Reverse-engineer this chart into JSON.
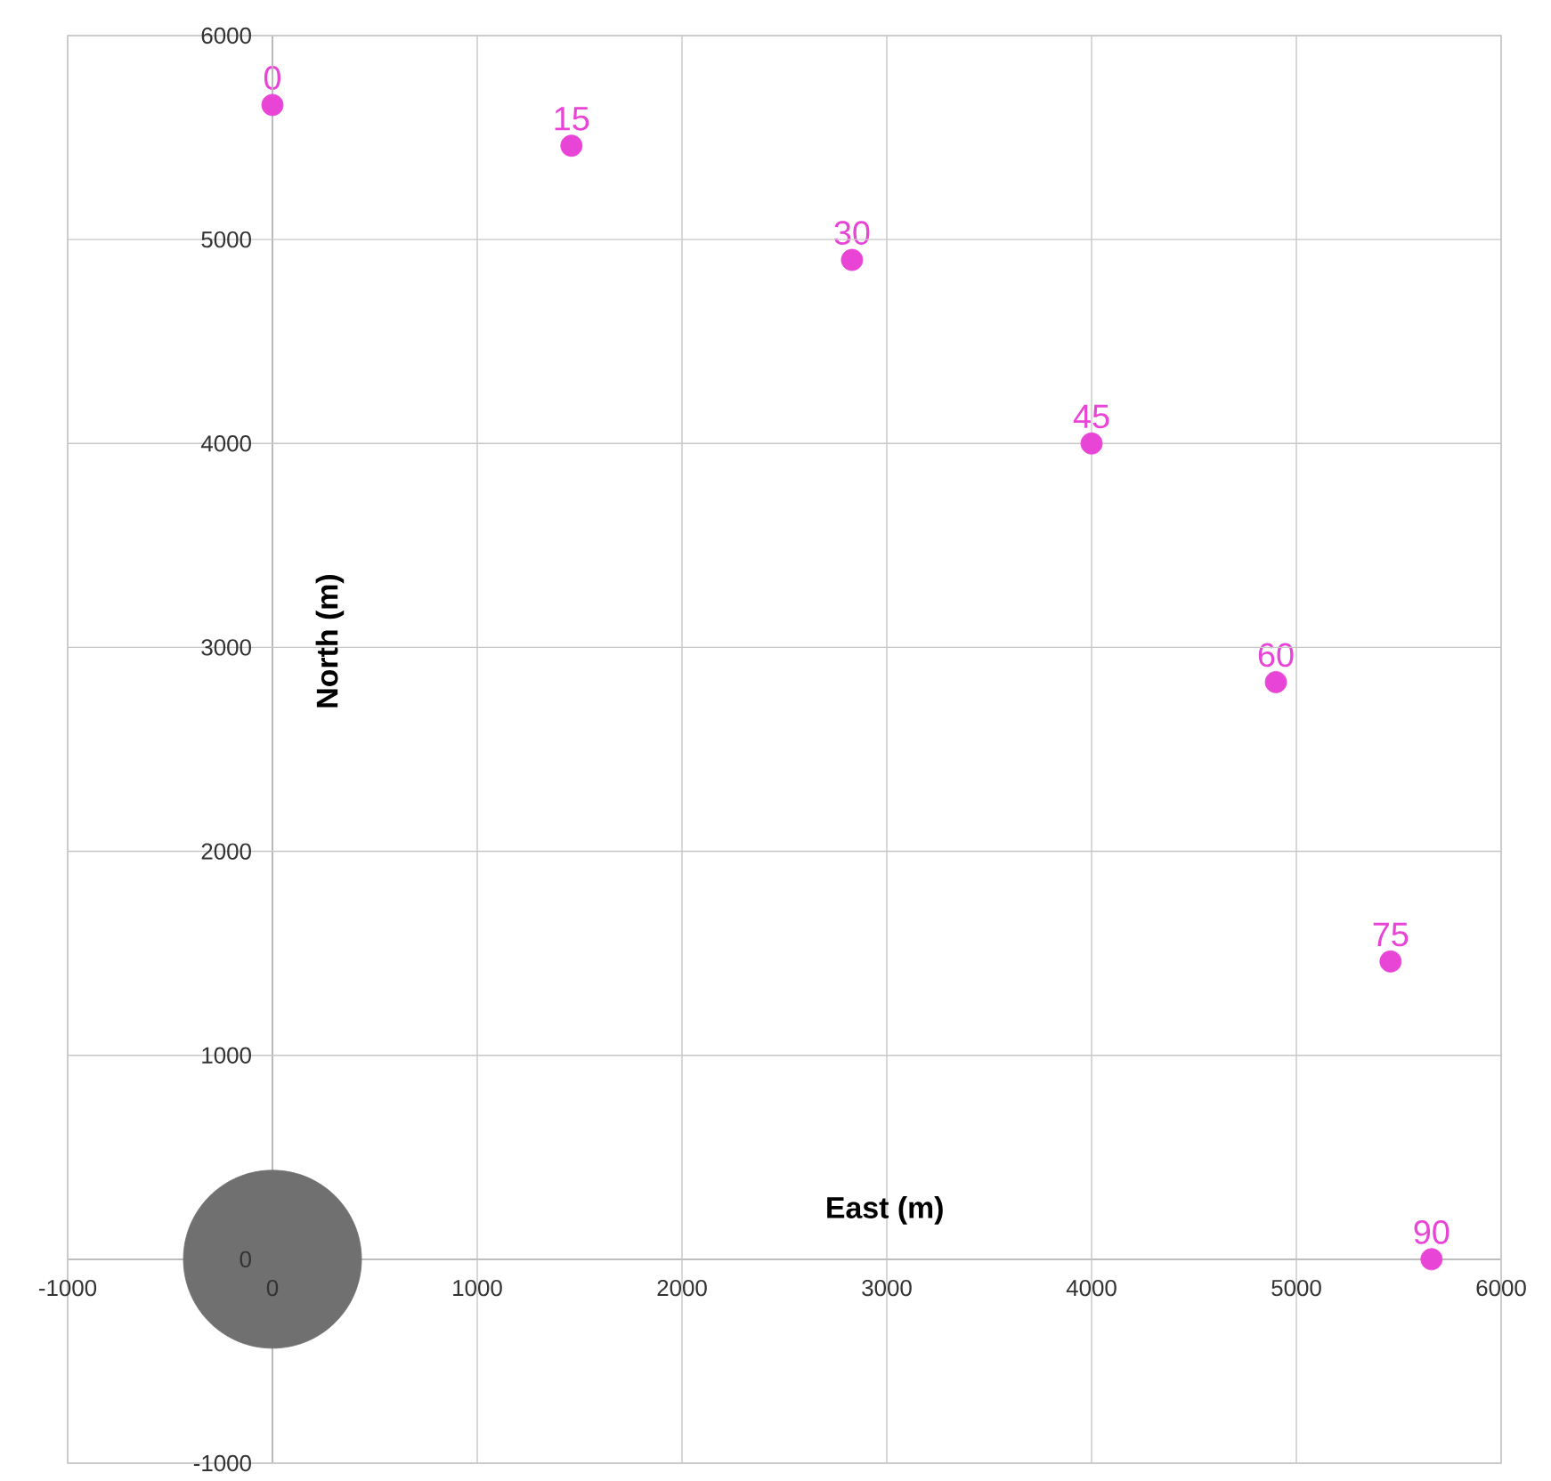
{
  "chart_data": {
    "type": "scatter",
    "xlabel": "East (m)",
    "ylabel": "North (m)",
    "xlim": [
      -1000,
      6000
    ],
    "ylim": [
      -1000,
      6000
    ],
    "xticks": [
      -1000,
      0,
      1000,
      2000,
      3000,
      4000,
      5000,
      6000
    ],
    "yticks": [
      -1000,
      0,
      1000,
      2000,
      3000,
      4000,
      5000,
      6000
    ],
    "grid": true,
    "marker": "circle",
    "series": [
      {
        "color": "#e844d6",
        "x": [
          0,
          1460,
          2830,
          4000,
          4900,
          5460,
          5660
        ],
        "values": [
          5660,
          5460,
          4900,
          4000,
          2830,
          1460,
          0
        ]
      },
      {
        "type": "bubble",
        "color": "#707070",
        "x": [
          0
        ],
        "values": [
          0
        ],
        "sizes": [
          1
        ]
      }
    ],
    "annotations": [
      {
        "text": "0",
        "x": 0,
        "y": 5660
      },
      {
        "text": "15",
        "x": 1460,
        "y": 5460
      },
      {
        "text": "30",
        "x": 2830,
        "y": 4900
      },
      {
        "text": "45",
        "x": 4000,
        "y": 4000
      },
      {
        "text": "60",
        "x": 4900,
        "y": 2830
      },
      {
        "text": "75",
        "x": 5460,
        "y": 1460
      },
      {
        "text": "90",
        "x": 5660,
        "y": 0
      }
    ]
  }
}
